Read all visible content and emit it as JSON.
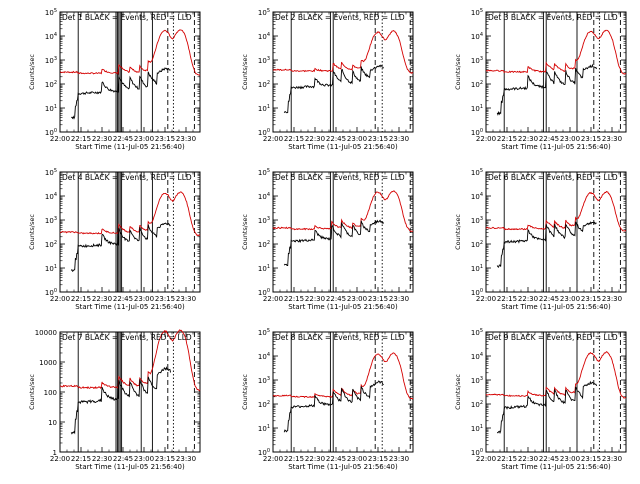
{
  "background": "#ffffff",
  "axis_color": "#000000",
  "chart_data": [
    {
      "type": "line",
      "title": "Det 1 BLACK = Events, RED = LLD",
      "xlabel": "Start Time (11-Jul-05 21:56:40)",
      "ylabel": "Counts/sec",
      "yscale": "log",
      "ylim": [
        1,
        100000
      ],
      "y_tick_values": [
        1,
        10,
        100,
        1000,
        10000,
        100000
      ],
      "y_tick_labels": [
        "10^0",
        "10^1",
        "10^2",
        "10^3",
        "10^4",
        "10^5"
      ],
      "x_tick_labels": [
        "22:00",
        "22:15",
        "22:30",
        "22:45",
        "23:00",
        "23:15",
        "23:30"
      ],
      "black_base": 40,
      "red_base": 280,
      "red_peak": 14000,
      "spikes": [
        {
          "t": "22:30",
          "h": 2.0
        },
        {
          "t": "22:42",
          "h": 3.0
        },
        {
          "t": "22:50",
          "h": 2.2
        },
        {
          "t": "22:57",
          "h": 2.4
        },
        {
          "t": "23:03",
          "h": 3.2
        }
      ],
      "solid_lines": [
        "22:13",
        "22:40",
        "22:41",
        "22:42",
        "22:43",
        "22:44",
        "22:58",
        "23:06"
      ],
      "dash_lines": [
        "23:17",
        "23:36"
      ],
      "dot_lines": [
        "23:21"
      ],
      "series": [
        {
          "name": "Events",
          "color": "#000000"
        },
        {
          "name": "LLD",
          "color": "#d40000"
        }
      ]
    },
    {
      "type": "line",
      "title": "Det 2 BLACK = Events, RED = LLD",
      "xlabel": "Start Time (11-Jul-05 21:56:40)",
      "ylabel": "Counts/sec",
      "yscale": "log",
      "ylim": [
        1,
        100000
      ],
      "y_tick_values": [
        1,
        10,
        100,
        1000,
        10000,
        100000
      ],
      "y_tick_labels": [
        "10^0",
        "10^1",
        "10^2",
        "10^3",
        "10^4",
        "10^5"
      ],
      "x_tick_labels": [
        "22:00",
        "22:15",
        "22:30",
        "22:45",
        "23:00",
        "23:15",
        "23:30"
      ],
      "black_base": 70,
      "red_base": 350,
      "red_peak": 12000,
      "spikes": [
        {
          "t": "22:30",
          "h": 1.6
        },
        {
          "t": "22:43",
          "h": 2.8
        },
        {
          "t": "22:49",
          "h": 2.6
        },
        {
          "t": "22:57",
          "h": 2.2
        },
        {
          "t": "23:03",
          "h": 2.8
        }
      ],
      "solid_lines": [
        "22:13",
        "22:41",
        "22:43"
      ],
      "dash_lines": [
        "23:13",
        "23:38"
      ],
      "dot_lines": [
        "23:18"
      ],
      "series": [
        {
          "name": "Events",
          "color": "#000000"
        },
        {
          "name": "LLD",
          "color": "#d40000"
        }
      ]
    },
    {
      "type": "line",
      "title": "Det 3 BLACK = Events, RED = LLD",
      "xlabel": "Start Time (11-Jul-05 21:56:40)",
      "ylabel": "Counts/sec",
      "yscale": "log",
      "ylim": [
        1,
        100000
      ],
      "y_tick_values": [
        1,
        10,
        100,
        1000,
        10000,
        100000
      ],
      "y_tick_labels": [
        "10^0",
        "10^1",
        "10^2",
        "10^3",
        "10^4",
        "10^5"
      ],
      "x_tick_labels": [
        "22:00",
        "22:15",
        "22:30",
        "22:45",
        "23:00",
        "23:15",
        "23:30"
      ],
      "black_base": 60,
      "red_base": 320,
      "red_peak": 13000,
      "spikes": [
        {
          "t": "22:30",
          "h": 2.2
        },
        {
          "t": "22:43",
          "h": 3.2
        },
        {
          "t": "22:49",
          "h": 2.4
        },
        {
          "t": "22:57",
          "h": 2.6
        },
        {
          "t": "23:04",
          "h": 2.8
        }
      ],
      "solid_lines": [
        "22:13",
        "22:41",
        "22:43",
        "23:05"
      ],
      "dash_lines": [
        "23:17",
        "23:36"
      ],
      "dot_lines": [
        "23:21"
      ],
      "series": [
        {
          "name": "Events",
          "color": "#000000"
        },
        {
          "name": "LLD",
          "color": "#d40000"
        }
      ]
    },
    {
      "type": "line",
      "title": "Det 4 BLACK = Events, RED = LLD",
      "xlabel": "Start Time (11-Jul-05 21:56:40)",
      "ylabel": "Counts/sec",
      "yscale": "log",
      "ylim": [
        1,
        100000
      ],
      "y_tick_values": [
        1,
        10,
        100,
        1000,
        10000,
        100000
      ],
      "y_tick_labels": [
        "10^0",
        "10^1",
        "10^2",
        "10^3",
        "10^4",
        "10^5"
      ],
      "x_tick_labels": [
        "22:00",
        "22:15",
        "22:30",
        "22:45",
        "23:00",
        "23:15",
        "23:30"
      ],
      "black_base": 80,
      "red_base": 280,
      "red_peak": 11000,
      "spikes": [
        {
          "t": "22:30",
          "h": 2.0
        },
        {
          "t": "22:42",
          "h": 3.0
        },
        {
          "t": "22:50",
          "h": 2.4
        },
        {
          "t": "22:57",
          "h": 2.6
        },
        {
          "t": "23:03",
          "h": 2.8
        }
      ],
      "solid_lines": [
        "22:13",
        "22:40",
        "22:41",
        "22:42",
        "22:43",
        "22:44",
        "22:58",
        "23:06"
      ],
      "dash_lines": [
        "23:17",
        "23:36"
      ],
      "dot_lines": [
        "23:21"
      ],
      "series": [
        {
          "name": "Events",
          "color": "#000000"
        },
        {
          "name": "LLD",
          "color": "#d40000"
        }
      ]
    },
    {
      "type": "line",
      "title": "Det 5 BLACK = Events, RED = LLD",
      "xlabel": "Start Time (11-Jul-05 21:56:40)",
      "ylabel": "Counts/sec",
      "yscale": "log",
      "ylim": [
        1,
        100000
      ],
      "y_tick_values": [
        1,
        10,
        100,
        1000,
        10000,
        100000
      ],
      "y_tick_labels": [
        "10^0",
        "10^1",
        "10^2",
        "10^3",
        "10^4",
        "10^5"
      ],
      "x_tick_labels": [
        "22:00",
        "22:15",
        "22:30",
        "22:45",
        "23:00",
        "23:15",
        "23:30"
      ],
      "black_base": 130,
      "red_base": 420,
      "red_peak": 12000,
      "spikes": [
        {
          "t": "22:30",
          "h": 1.8
        },
        {
          "t": "22:42",
          "h": 2.6
        },
        {
          "t": "22:49",
          "h": 2.8
        },
        {
          "t": "22:57",
          "h": 2.2
        },
        {
          "t": "23:03",
          "h": 2.6
        }
      ],
      "solid_lines": [
        "22:13",
        "22:41",
        "22:43"
      ],
      "dash_lines": [
        "23:13",
        "23:38"
      ],
      "dot_lines": [
        "23:18"
      ],
      "series": [
        {
          "name": "Events",
          "color": "#000000"
        },
        {
          "name": "LLD",
          "color": "#d40000"
        }
      ]
    },
    {
      "type": "line",
      "title": "Det 6 BLACK = Events, RED = LLD",
      "xlabel": "Start Time (11-Jul-05 21:56:40)",
      "ylabel": "Counts/sec",
      "yscale": "log",
      "ylim": [
        1,
        100000
      ],
      "y_tick_values": [
        1,
        10,
        100,
        1000,
        10000,
        100000
      ],
      "y_tick_labels": [
        "10^0",
        "10^1",
        "10^2",
        "10^3",
        "10^4",
        "10^5"
      ],
      "x_tick_labels": [
        "22:00",
        "22:15",
        "22:30",
        "22:45",
        "23:00",
        "23:15",
        "23:30"
      ],
      "black_base": 120,
      "red_base": 420,
      "red_peak": 11000,
      "spikes": [
        {
          "t": "22:30",
          "h": 2.0
        },
        {
          "t": "22:43",
          "h": 3.0
        },
        {
          "t": "22:49",
          "h": 2.4
        },
        {
          "t": "22:57",
          "h": 2.8
        },
        {
          "t": "23:04",
          "h": 2.6
        }
      ],
      "solid_lines": [
        "22:13",
        "22:41",
        "22:43",
        "23:05"
      ],
      "dash_lines": [
        "23:17",
        "23:36"
      ],
      "dot_lines": [
        "23:21"
      ],
      "series": [
        {
          "name": "Events",
          "color": "#000000"
        },
        {
          "name": "LLD",
          "color": "#d40000"
        }
      ]
    },
    {
      "type": "line",
      "title": "Det 7 BLACK = Events, RED = LLD",
      "xlabel": "Start Time (11-Jul-05 21:56:40)",
      "ylabel": "Counts/sec",
      "yscale": "log",
      "ylim": [
        1,
        10000
      ],
      "y_tick_values": [
        1,
        10,
        100,
        1000,
        10000
      ],
      "y_tick_labels": [
        "1",
        "10",
        "100",
        "1000",
        "10000"
      ],
      "x_tick_labels": [
        "22:00",
        "22:15",
        "22:30",
        "22:45",
        "23:00",
        "23:15",
        "23:30"
      ],
      "black_base": 45,
      "red_base": 140,
      "red_peak": 9000,
      "spikes": [
        {
          "t": "22:30",
          "h": 2.0
        },
        {
          "t": "22:42",
          "h": 3.2
        },
        {
          "t": "22:50",
          "h": 2.4
        },
        {
          "t": "22:57",
          "h": 2.6
        },
        {
          "t": "23:03",
          "h": 3.0
        }
      ],
      "solid_lines": [
        "22:13",
        "22:40",
        "22:41",
        "22:42",
        "22:43",
        "22:44",
        "22:58",
        "23:06"
      ],
      "dash_lines": [
        "23:17",
        "23:36"
      ],
      "dot_lines": [
        "23:21"
      ],
      "series": [
        {
          "name": "Events",
          "color": "#000000"
        },
        {
          "name": "LLD",
          "color": "#d40000"
        }
      ]
    },
    {
      "type": "line",
      "title": "Det 8 BLACK = Events, RED = LLD",
      "xlabel": "Start Time (11-Jul-05 21:56:40)",
      "ylabel": "Counts/sec",
      "yscale": "log",
      "ylim": [
        1,
        100000
      ],
      "y_tick_values": [
        1,
        10,
        100,
        1000,
        10000,
        100000
      ],
      "y_tick_labels": [
        "10^0",
        "10^1",
        "10^2",
        "10^3",
        "10^4",
        "10^5"
      ],
      "x_tick_labels": [
        "22:00",
        "22:15",
        "22:30",
        "22:45",
        "23:00",
        "23:15",
        "23:30"
      ],
      "black_base": 75,
      "red_base": 200,
      "red_peak": 10000,
      "spikes": [
        {
          "t": "22:30",
          "h": 1.8
        },
        {
          "t": "22:43",
          "h": 2.6
        },
        {
          "t": "22:49",
          "h": 2.6
        },
        {
          "t": "22:57",
          "h": 2.4
        },
        {
          "t": "23:03",
          "h": 2.8
        }
      ],
      "solid_lines": [
        "22:13",
        "22:41",
        "22:43"
      ],
      "dash_lines": [
        "23:13",
        "23:38"
      ],
      "dot_lines": [
        "23:18"
      ],
      "series": [
        {
          "name": "Events",
          "color": "#000000"
        },
        {
          "name": "LLD",
          "color": "#d40000"
        }
      ]
    },
    {
      "type": "line",
      "title": "Det 9 BLACK = Events, RED = LLD",
      "xlabel": "Start Time (11-Jul-05 21:56:40)",
      "ylabel": "Counts/sec",
      "yscale": "log",
      "ylim": [
        1,
        100000
      ],
      "y_tick_values": [
        1,
        10,
        100,
        1000,
        10000,
        100000
      ],
      "y_tick_labels": [
        "10^0",
        "10^1",
        "10^2",
        "10^3",
        "10^4",
        "10^5"
      ],
      "x_tick_labels": [
        "22:00",
        "22:15",
        "22:30",
        "22:45",
        "23:00",
        "23:15",
        "23:30"
      ],
      "black_base": 70,
      "red_base": 220,
      "red_peak": 11000,
      "spikes": [
        {
          "t": "22:30",
          "h": 2.0
        },
        {
          "t": "22:43",
          "h": 3.0
        },
        {
          "t": "22:49",
          "h": 2.4
        },
        {
          "t": "22:57",
          "h": 2.6
        },
        {
          "t": "23:04",
          "h": 2.8
        }
      ],
      "solid_lines": [
        "22:13",
        "22:41",
        "22:43",
        "23:05"
      ],
      "dash_lines": [
        "23:17",
        "23:36"
      ],
      "dot_lines": [
        "23:21"
      ],
      "series": [
        {
          "name": "Events",
          "color": "#000000"
        },
        {
          "name": "LLD",
          "color": "#d40000"
        }
      ]
    }
  ]
}
